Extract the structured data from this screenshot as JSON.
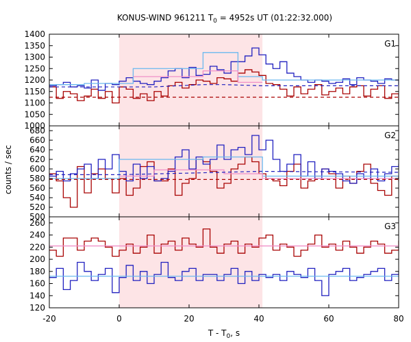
{
  "chart_data": {
    "type": "line",
    "title": {
      "main": "KONUS-WIND 961211 T",
      "sub": "0",
      "rest": " = 4952s UT (01:22:32.000)"
    },
    "xlabel": {
      "main": "T - T",
      "sub": "0",
      "rest": ", s"
    },
    "ylabel": "counts / sec",
    "xlim": [
      -20,
      80
    ],
    "xticks": [
      -20,
      0,
      20,
      40,
      60,
      80
    ],
    "shaded_interval": [
      0,
      41
    ],
    "bin_width": 2,
    "colors": {
      "shade": "#fde4e6",
      "dark_red": "#a80000",
      "blue": "#1f1fbf",
      "light_blue": "#6ab8ef",
      "pink": "#f08fc8",
      "grid": "#000000"
    },
    "panels": [
      {
        "label": "G1",
        "ylim": [
          1000,
          1400
        ],
        "yticks": [
          1000,
          1050,
          1100,
          1150,
          1200,
          1250,
          1300,
          1350,
          1400
        ],
        "series": [
          {
            "color": "dark_red",
            "style": "step",
            "x0": -20,
            "values": [
              1170,
              1120,
              1150,
              1140,
              1110,
              1130,
              1160,
              1120,
              1150,
              1100,
              1170,
              1160,
              1120,
              1140,
              1110,
              1150,
              1130,
              1175,
              1190,
              1165,
              1180,
              1200,
              1195,
              1185,
              1210,
              1205,
              1195,
              1230,
              1245,
              1235,
              1220,
              1185,
              1180,
              1160,
              1130,
              1170,
              1140,
              1160,
              1180,
              1135,
              1150,
              1165,
              1140,
              1170,
              1175,
              1130,
              1160,
              1175,
              1120,
              1140,
              1105,
              1110,
              1090,
              1130,
              1120,
              1155,
              1145,
              1170,
              1135,
              1150,
              1115,
              1125,
              1110,
              1160,
              1160,
              1140,
              1170,
              1150,
              1080,
              1160
            ]
          },
          {
            "color": "blue",
            "style": "step",
            "x0": -20,
            "values": [
              1175,
              1180,
              1190,
              1170,
              1175,
              1165,
              1200,
              1155,
              1185,
              1180,
              1195,
              1210,
              1195,
              1185,
              1180,
              1195,
              1210,
              1240,
              1250,
              1210,
              1255,
              1220,
              1225,
              1260,
              1245,
              1230,
              1280,
              1280,
              1305,
              1340,
              1310,
              1270,
              1250,
              1280,
              1230,
              1215,
              1200,
              1190,
              1200,
              1195,
              1185,
              1190,
              1205,
              1180,
              1210,
              1200,
              1195,
              1185,
              1205,
              1200,
              1180,
              1195,
              1230,
              1205,
              1190,
              1195,
              1215,
              1190,
              1200,
              1210,
              1185,
              1180,
              1195,
              1215,
              1190,
              1180,
              1150,
              1165,
              1115,
              1050
            ]
          },
          {
            "color": "light_blue",
            "style": "step",
            "steps": [
              [
                -20,
                1180
              ],
              [
                -10,
                1180
              ],
              [
                -10,
                1185
              ],
              [
                4,
                1185
              ],
              [
                4,
                1250
              ],
              [
                24,
                1250
              ],
              [
                24,
                1320
              ],
              [
                34,
                1320
              ],
              [
                34,
                1215
              ],
              [
                41,
                1215
              ],
              [
                41,
                1200
              ],
              [
                80,
                1200
              ]
            ]
          },
          {
            "color": "pink",
            "style": "step",
            "steps": [
              [
                4,
                1215
              ],
              [
                24,
                1215
              ],
              [
                24,
                1240
              ],
              [
                34,
                1240
              ],
              [
                34,
                1190
              ],
              [
                41,
                1190
              ]
            ]
          },
          {
            "color": "blue",
            "style": "dashed",
            "points": [
              [
                -20,
                1170
              ],
              [
                0,
                1170
              ],
              [
                10,
                1170
              ],
              [
                24,
                1180
              ],
              [
                30,
                1180
              ],
              [
                41,
                1175
              ],
              [
                80,
                1175
              ]
            ]
          },
          {
            "color": "dark_red",
            "style": "dashed",
            "points": [
              [
                -20,
                1125
              ],
              [
                80,
                1125
              ]
            ]
          }
        ]
      },
      {
        "label": "G2",
        "ylim": [
          500,
          690
        ],
        "yticks": [
          500,
          520,
          540,
          560,
          580,
          600,
          620,
          640,
          660,
          680
        ],
        "series": [
          {
            "color": "dark_red",
            "style": "step",
            "x0": -20,
            "values": [
              590,
              575,
              540,
              520,
              605,
              550,
              590,
              600,
              580,
              550,
              580,
              545,
              560,
              605,
              615,
              575,
              575,
              600,
              545,
              570,
              580,
              620,
              615,
              595,
              560,
              570,
              600,
              610,
              625,
              615,
              590,
              580,
              575,
              565,
              595,
              610,
              560,
              575,
              585,
              600,
              590,
              560,
              585,
              570,
              595,
              610,
              570,
              555,
              545,
              585,
              575,
              555,
              570,
              600,
              575,
              560,
              560,
              580,
              575,
              565,
              590,
              545,
              570,
              575,
              530,
              565,
              585,
              550,
              590,
              545
            ]
          },
          {
            "color": "blue",
            "style": "step",
            "x0": -20,
            "values": [
              585,
              595,
              575,
              590,
              600,
              610,
              580,
              620,
              600,
              630,
              595,
              575,
              610,
              580,
              605,
              575,
              580,
              595,
              625,
              640,
              600,
              625,
              610,
              620,
              650,
              620,
              640,
              645,
              630,
              670,
              640,
              660,
              620,
              595,
              610,
              630,
              585,
              615,
              580,
              600,
              595,
              590,
              575,
              570,
              590,
              580,
              600,
              575,
              590,
              605,
              610,
              590,
              580,
              600,
              575,
              595,
              605,
              580,
              570,
              600,
              590,
              585,
              610,
              570,
              590,
              575,
              615,
              600,
              600,
              590
            ]
          },
          {
            "color": "light_blue",
            "style": "step",
            "steps": [
              [
                -20,
                580
              ],
              [
                0,
                580
              ],
              [
                0,
                620
              ],
              [
                24,
                620
              ],
              [
                24,
                625
              ],
              [
                41,
                625
              ],
              [
                41,
                585
              ],
              [
                80,
                585
              ]
            ]
          },
          {
            "color": "pink",
            "style": "step",
            "steps": [
              [
                0,
                585
              ],
              [
                10,
                585
              ],
              [
                10,
                598
              ],
              [
                30,
                598
              ],
              [
                30,
                590
              ],
              [
                41,
                590
              ],
              [
                41,
                580
              ],
              [
                80,
                580
              ]
            ]
          },
          {
            "color": "blue",
            "style": "dashed",
            "points": [
              [
                -20,
                588
              ],
              [
                0,
                588
              ],
              [
                24,
                592
              ],
              [
                40,
                595
              ],
              [
                80,
                593
              ]
            ]
          },
          {
            "color": "dark_red",
            "style": "dashed",
            "points": [
              [
                -20,
                578
              ],
              [
                80,
                578
              ]
            ]
          }
        ]
      },
      {
        "label": "G3",
        "ylim": [
          120,
          270
        ],
        "yticks": [
          120,
          140,
          160,
          180,
          200,
          220,
          240,
          260
        ],
        "series": [
          {
            "color": "dark_red",
            "style": "step",
            "x0": -20,
            "values": [
              215,
              205,
              235,
              235,
              215,
              230,
              235,
              230,
              220,
              205,
              215,
              225,
              210,
              220,
              240,
              210,
              225,
              230,
              215,
              235,
              225,
              220,
              250,
              220,
              210,
              225,
              230,
              210,
              225,
              220,
              235,
              240,
              215,
              225,
              220,
              205,
              215,
              225,
              240,
              220,
              225,
              215,
              230,
              220,
              210,
              220,
              230,
              225,
              210,
              215,
              230,
              235,
              225,
              240,
              230,
              215,
              220,
              235,
              225,
              215,
              220,
              230,
              215,
              225,
              210,
              220,
              230,
              225,
              215,
              225
            ]
          },
          {
            "color": "blue",
            "style": "step",
            "x0": -20,
            "values": [
              170,
              185,
              150,
              165,
              195,
              180,
              165,
              175,
              185,
              145,
              170,
              190,
              165,
              180,
              160,
              175,
              195,
              170,
              165,
              180,
              185,
              165,
              175,
              175,
              165,
              175,
              185,
              160,
              180,
              165,
              175,
              170,
              175,
              165,
              180,
              175,
              170,
              185,
              165,
              140,
              175,
              180,
              185,
              165,
              170,
              175,
              180,
              185,
              165,
              175,
              180,
              170,
              185,
              175,
              175,
              165,
              170,
              175,
              180,
              175,
              170,
              165,
              180,
              170,
              175,
              165,
              175,
              170,
              180,
              185
            ]
          },
          {
            "color": "light_blue",
            "style": "step",
            "steps": [
              [
                -20,
                172
              ],
              [
                80,
                172
              ]
            ]
          },
          {
            "color": "pink",
            "style": "step",
            "steps": [
              [
                -20,
                222
              ],
              [
                80,
                222
              ]
            ]
          }
        ]
      }
    ]
  }
}
